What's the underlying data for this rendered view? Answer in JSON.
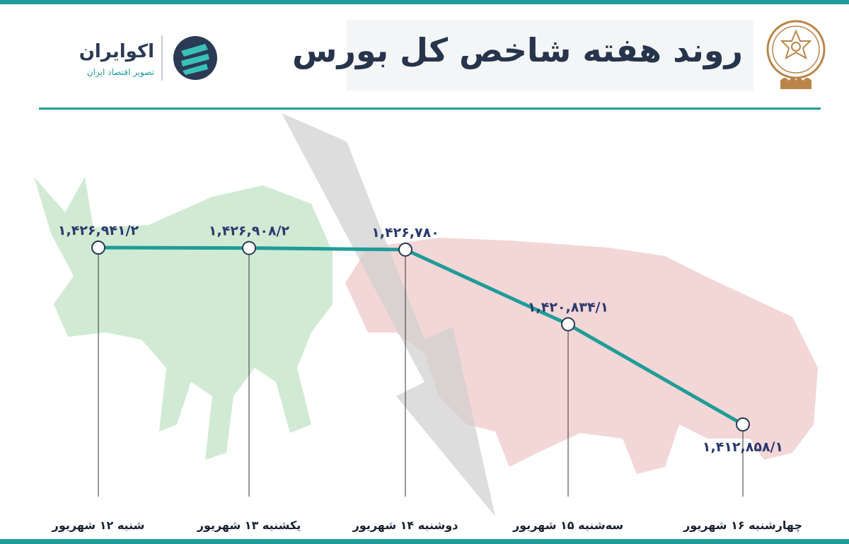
{
  "header": {
    "title": "روند هفته شاخص کل بورس",
    "brand_name": "اکوایران",
    "brand_subtitle": "تصویر اقتصاد ایران"
  },
  "colors": {
    "accent": "#1f9c98",
    "title": "#26344c",
    "label": "#2b3a6e",
    "bull": "#c9e6cc",
    "bear": "#f1cfcf",
    "arrow": "#d0d0d0",
    "seal": "#b9854a"
  },
  "icons": [
    "seal-emblem",
    "brand-logo-icon",
    "bull-silhouette",
    "bear-silhouette",
    "down-arrow-graphic"
  ],
  "chart_data": {
    "type": "line",
    "categories": [
      "شنبه ۱۲ شهریور",
      "یکشنبه ۱۳ شهریور",
      "دوشنبه ۱۴ شهریور",
      "سه‌شنبه ۱۵ شهریور",
      "چهارشنبه ۱۶ شهریور"
    ],
    "values": [
      1426941.2,
      1426908.2,
      1426780,
      1420834.1,
      1412858.1
    ],
    "value_labels": [
      "۱,۴۲۶,۹۴۱/۲",
      "۱,۴۲۶,۹۰۸/۲",
      "۱,۴۲۶,۷۸۰",
      "۱,۴۲۰,۸۳۴/۱",
      "۱,۴۱۲,۸۵۸/۱"
    ],
    "title": "",
    "xlabel": "",
    "ylabel": "",
    "grid": false,
    "legend": "none"
  }
}
